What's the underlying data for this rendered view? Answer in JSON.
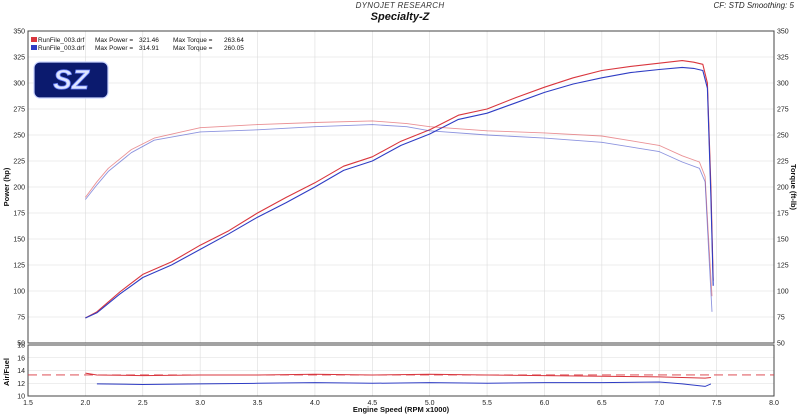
{
  "header": {
    "brand": "DYNOJET RESEARCH",
    "title": "Specialty-Z",
    "config": "CF: STD   Smoothing: 5"
  },
  "logo": {
    "text": "SZ"
  },
  "colors": {
    "run1": "#d9363e",
    "run2": "#2f3dc4",
    "afr_ref": "#d9363e"
  },
  "chart_data": [
    {
      "type": "line",
      "xlabel": "Engine Speed (RPM x1000)",
      "ylabel": "Power (hp)",
      "y2label": "Torque (ft-lb)",
      "xlim": [
        1.5,
        8.0
      ],
      "ylim": [
        50,
        350
      ],
      "y2lim": [
        50,
        350
      ],
      "x_ticks": [
        "1.5",
        "2.0",
        "2.5",
        "3.0",
        "3.5",
        "4.0",
        "4.5",
        "5.0",
        "5.5",
        "6.0",
        "6.5",
        "7.0",
        "7.5",
        "8.0"
      ],
      "y_ticks": [
        "50",
        "75",
        "100",
        "125",
        "150",
        "175",
        "200",
        "225",
        "250",
        "275",
        "300",
        "325",
        "350"
      ],
      "grid": true,
      "legend": [
        {
          "label": "RunFile_003.drf",
          "max_power_label": "Max Power =",
          "max_power": "321.46",
          "max_torque_label": "Max Torque =",
          "max_torque": "263.64"
        },
        {
          "label": "RunFile_003.drf",
          "max_power_label": "Max Power =",
          "max_power": "314.91",
          "max_torque_label": "Max Torque =",
          "max_torque": "260.05"
        }
      ],
      "series": [
        {
          "metric": "power",
          "run": 1,
          "x": [
            2.0,
            2.1,
            2.3,
            2.5,
            2.75,
            3.0,
            3.25,
            3.5,
            3.75,
            4.0,
            4.25,
            4.5,
            4.75,
            5.0,
            5.25,
            5.5,
            5.75,
            6.0,
            6.25,
            6.5,
            6.75,
            7.0,
            7.2,
            7.3,
            7.38,
            7.42,
            7.45,
            7.47
          ],
          "y": [
            74,
            80,
            99,
            116,
            128,
            144,
            158,
            175,
            190,
            204,
            220,
            229,
            244,
            255,
            269,
            275,
            286,
            296,
            305,
            312,
            316,
            319,
            321.5,
            320,
            318,
            300,
            200,
            110
          ]
        },
        {
          "metric": "power",
          "run": 2,
          "x": [
            2.0,
            2.1,
            2.3,
            2.5,
            2.75,
            3.0,
            3.25,
            3.5,
            3.75,
            4.0,
            4.25,
            4.5,
            4.75,
            5.0,
            5.25,
            5.5,
            5.75,
            6.0,
            6.25,
            6.5,
            6.75,
            7.0,
            7.2,
            7.3,
            7.38,
            7.42,
            7.45,
            7.47
          ],
          "y": [
            74,
            79,
            97,
            113,
            125,
            140,
            155,
            171,
            185,
            200,
            216,
            225,
            240,
            251,
            265,
            271,
            281,
            291,
            299,
            305,
            310,
            313,
            315,
            314,
            312,
            295,
            190,
            105
          ]
        },
        {
          "metric": "torque",
          "run": 1,
          "x": [
            2.0,
            2.1,
            2.2,
            2.4,
            2.6,
            3.0,
            3.5,
            4.0,
            4.5,
            4.8,
            5.0,
            5.5,
            6.0,
            6.5,
            7.0,
            7.2,
            7.35,
            7.4,
            7.43,
            7.46
          ],
          "y": [
            190,
            205,
            218,
            236,
            247,
            257,
            260,
            262,
            263.6,
            261,
            258,
            254,
            252,
            249,
            240,
            230,
            224,
            210,
            150,
            95
          ]
        },
        {
          "metric": "torque",
          "run": 2,
          "x": [
            2.0,
            2.1,
            2.2,
            2.4,
            2.6,
            3.0,
            3.5,
            4.0,
            4.5,
            4.8,
            5.0,
            5.5,
            6.0,
            6.5,
            7.0,
            7.2,
            7.35,
            7.4,
            7.43,
            7.46
          ],
          "y": [
            188,
            202,
            215,
            233,
            245,
            253,
            255,
            258,
            260,
            258,
            254,
            250,
            247,
            243,
            234,
            224,
            218,
            205,
            140,
            80
          ]
        }
      ]
    },
    {
      "type": "line",
      "ylabel": "Air/Fuel",
      "xlim": [
        1.5,
        8.0
      ],
      "ylim": [
        10,
        18
      ],
      "y_ticks": [
        "10",
        "12",
        "14",
        "16",
        "18"
      ],
      "reference_line": 13.3,
      "series": [
        {
          "metric": "afr",
          "run": 1,
          "x": [
            2.0,
            2.1,
            2.5,
            3.0,
            3.5,
            4.0,
            4.5,
            5.0,
            5.5,
            6.0,
            6.5,
            7.0,
            7.2,
            7.4,
            7.45
          ],
          "y": [
            13.6,
            13.3,
            13.2,
            13.3,
            13.3,
            13.4,
            13.3,
            13.4,
            13.3,
            13.2,
            13.1,
            13.0,
            12.9,
            12.8,
            12.9
          ]
        },
        {
          "metric": "afr",
          "run": 2,
          "x": [
            2.1,
            2.5,
            3.0,
            3.5,
            4.0,
            4.5,
            5.0,
            5.5,
            6.0,
            6.5,
            7.0,
            7.2,
            7.4,
            7.45
          ],
          "y": [
            11.9,
            11.8,
            11.9,
            12.0,
            12.1,
            12.0,
            12.1,
            12.0,
            12.1,
            12.1,
            12.2,
            11.9,
            11.5,
            11.9
          ]
        }
      ]
    }
  ]
}
